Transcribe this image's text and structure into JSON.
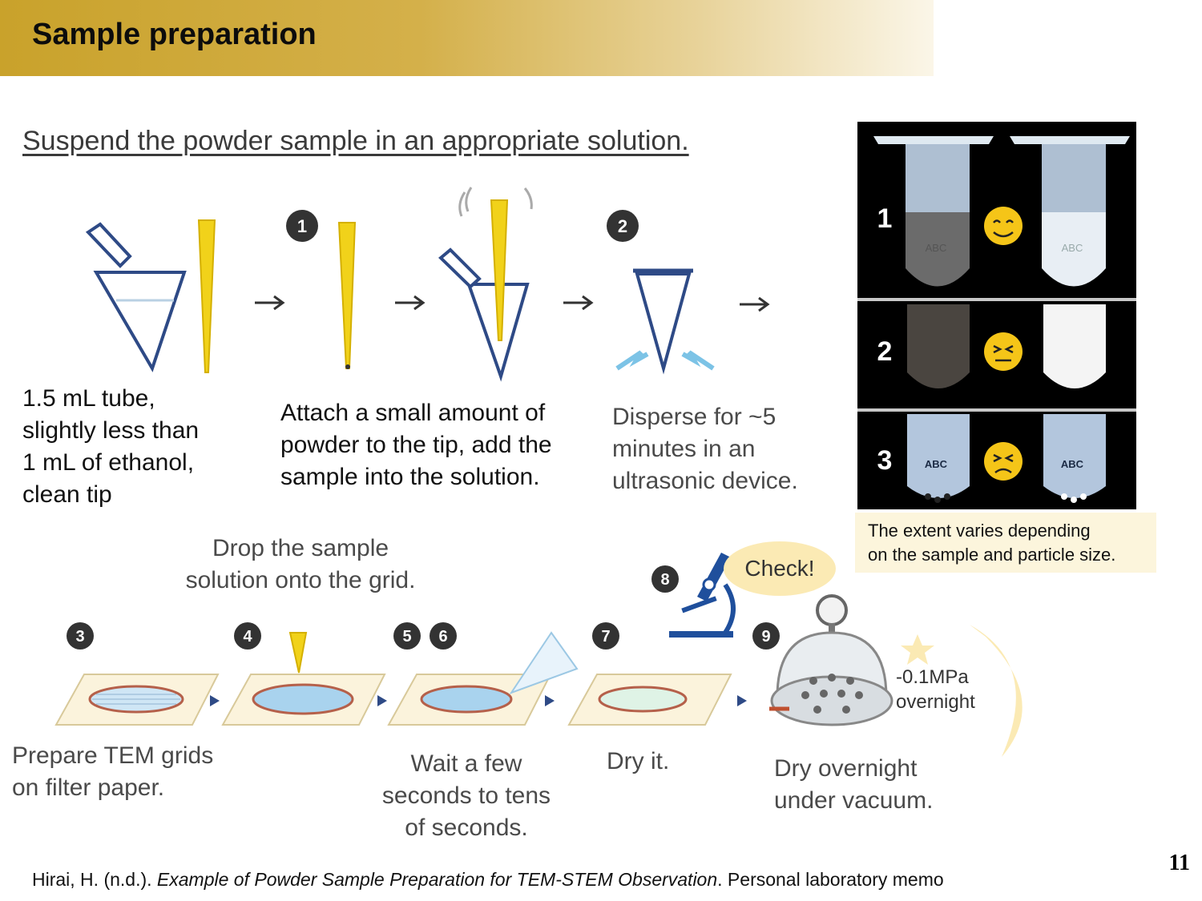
{
  "slide": {
    "title": "Sample preparation",
    "subtitle": "Suspend the powder sample in an appropriate solution.",
    "page_number": "11"
  },
  "top_steps": {
    "step_numbers": [
      "1",
      "2"
    ],
    "captions": {
      "tube": [
        "1.5 mL tube,",
        "slightly less than",
        "1 mL of ethanol,",
        "clean tip"
      ],
      "attach": [
        "Attach a small amount of",
        "powder to the tip, add the",
        "sample into the solution."
      ],
      "disperse": [
        "Disperse for ~5",
        "minutes in an",
        "ultrasonic device."
      ]
    }
  },
  "photo_panel": {
    "rows": [
      "1",
      "2",
      "3"
    ],
    "tube_label": "ABC",
    "note": [
      "The extent varies depending",
      "on the sample and particle size."
    ]
  },
  "bottom_steps": {
    "drop_caption": [
      "Drop the sample",
      "solution onto the grid."
    ],
    "step_numbers": [
      "3",
      "4",
      "5",
      "6",
      "7",
      "8",
      "9"
    ],
    "check_label": "Check!",
    "vacuum_label": [
      "-0.1MPa",
      "overnight"
    ],
    "captions": {
      "prepare": [
        "Prepare TEM grids",
        "on filter paper."
      ],
      "wait": [
        "Wait a few",
        "seconds to tens",
        "of seconds."
      ],
      "dry": [
        "Dry it."
      ],
      "overnight": [
        "Dry overnight",
        "under vacuum."
      ]
    }
  },
  "citation": {
    "author": "Hirai, H. (n.d.). ",
    "work_title": "Example of Powder Sample Preparation for TEM-STEM Observation",
    "rest": ". Personal laboratory memo"
  },
  "colors": {
    "header_gold": "#c9a22b",
    "tube_outline": "#2e4a86",
    "tip_yellow": "#f1d21a",
    "note_bg": "#fcf5dc",
    "step_number_fill": "#333333",
    "microscope_blue": "#1f4f9c"
  }
}
